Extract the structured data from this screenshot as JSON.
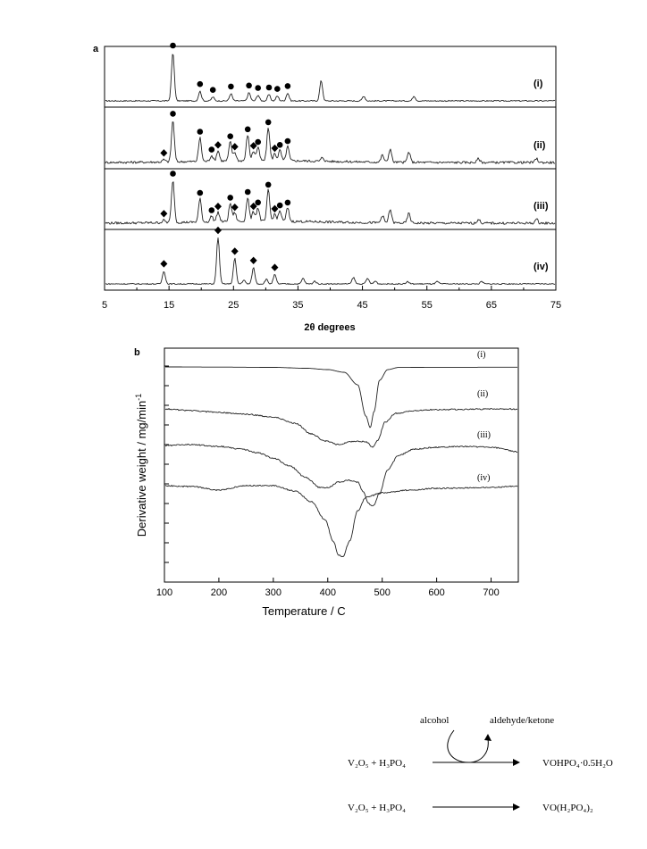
{
  "chart_data": [
    {
      "panel": "a",
      "type": "line",
      "xlabel": "2θ degrees",
      "xlim": [
        5,
        75
      ],
      "xticks": [
        5,
        15,
        25,
        35,
        45,
        55,
        65,
        75
      ],
      "marker_legend": {
        "circle": "●",
        "diamond": "◆"
      },
      "series": [
        {
          "name": "(i)",
          "peaks": [
            [
              15.6,
              1.0
            ],
            [
              19.8,
              0.2
            ],
            [
              21.8,
              0.08
            ],
            [
              24.6,
              0.15
            ],
            [
              27.4,
              0.17
            ],
            [
              28.8,
              0.12
            ],
            [
              30.5,
              0.13
            ],
            [
              31.8,
              0.1
            ],
            [
              33.4,
              0.16
            ],
            [
              38.6,
              0.42
            ],
            [
              45.2,
              0.1
            ],
            [
              53.0,
              0.1
            ]
          ],
          "circle_markers": [
            15.6,
            19.8,
            21.8,
            24.6,
            27.4,
            28.8,
            30.5,
            31.8,
            33.4
          ],
          "diamond_markers": []
        },
        {
          "name": "(ii)",
          "peaks": [
            [
              14.2,
              0.05
            ],
            [
              15.6,
              0.88
            ],
            [
              19.8,
              0.5
            ],
            [
              21.6,
              0.12
            ],
            [
              22.6,
              0.22
            ],
            [
              24.5,
              0.4
            ],
            [
              25.2,
              0.18
            ],
            [
              27.2,
              0.55
            ],
            [
              28.1,
              0.2
            ],
            [
              28.8,
              0.28
            ],
            [
              30.4,
              0.7
            ],
            [
              31.4,
              0.15
            ],
            [
              32.2,
              0.22
            ],
            [
              33.4,
              0.3
            ],
            [
              38.8,
              0.08
            ],
            [
              48.1,
              0.15
            ],
            [
              49.3,
              0.28
            ],
            [
              52.2,
              0.22
            ],
            [
              63.0,
              0.08
            ],
            [
              72.0,
              0.08
            ]
          ],
          "circle_markers": [
            15.6,
            19.8,
            21.6,
            24.5,
            27.2,
            28.8,
            30.4,
            32.2,
            33.4
          ],
          "diamond_markers": [
            14.2,
            22.6,
            25.2,
            28.1,
            31.4
          ]
        },
        {
          "name": "(iii)",
          "peaks": [
            [
              14.2,
              0.05
            ],
            [
              15.6,
              0.88
            ],
            [
              19.8,
              0.48
            ],
            [
              21.6,
              0.12
            ],
            [
              22.6,
              0.2
            ],
            [
              24.5,
              0.38
            ],
            [
              25.2,
              0.18
            ],
            [
              27.2,
              0.5
            ],
            [
              28.1,
              0.2
            ],
            [
              28.8,
              0.28
            ],
            [
              30.4,
              0.65
            ],
            [
              31.4,
              0.15
            ],
            [
              32.2,
              0.22
            ],
            [
              33.4,
              0.28
            ],
            [
              48.1,
              0.15
            ],
            [
              49.3,
              0.28
            ],
            [
              52.2,
              0.2
            ],
            [
              63.0,
              0.08
            ],
            [
              72.0,
              0.08
            ]
          ],
          "circle_markers": [
            15.6,
            19.8,
            21.6,
            24.5,
            27.2,
            28.8,
            30.4,
            32.2,
            33.4
          ],
          "diamond_markers": [
            14.2,
            22.6,
            25.2,
            28.1,
            31.4
          ]
        },
        {
          "name": "(iv)",
          "peaks": [
            [
              14.2,
              0.28
            ],
            [
              22.6,
              1.0
            ],
            [
              25.2,
              0.55
            ],
            [
              26.6,
              0.08
            ],
            [
              28.1,
              0.35
            ],
            [
              30.1,
              0.1
            ],
            [
              31.4,
              0.2
            ],
            [
              35.8,
              0.12
            ],
            [
              37.6,
              0.06
            ],
            [
              43.6,
              0.14
            ],
            [
              45.8,
              0.12
            ],
            [
              47.0,
              0.06
            ],
            [
              52.0,
              0.05
            ],
            [
              56.6,
              0.05
            ],
            [
              63.5,
              0.05
            ]
          ],
          "circle_markers": [],
          "diamond_markers": [
            14.2,
            22.6,
            25.2,
            28.1,
            31.4
          ]
        }
      ]
    },
    {
      "panel": "b",
      "type": "line",
      "xlabel": "Temperature / C",
      "ylabel": "Derivative weight / mg/min",
      "ylabel_sup": "-1",
      "xlim": [
        100,
        750
      ],
      "xticks": [
        100,
        200,
        300,
        400,
        500,
        600,
        700
      ],
      "series": [
        {
          "name": "(i)",
          "points": [
            [
              100,
              0
            ],
            [
              200,
              -0.2
            ],
            [
              300,
              -0.5
            ],
            [
              360,
              -1.5
            ],
            [
              400,
              -3
            ],
            [
              430,
              -6
            ],
            [
              455,
              -20
            ],
            [
              470,
              -55
            ],
            [
              478,
              -68
            ],
            [
              485,
              -50
            ],
            [
              495,
              -15
            ],
            [
              510,
              -3
            ],
            [
              530,
              -0.6
            ],
            [
              600,
              -0.4
            ],
            [
              750,
              -0.3
            ]
          ]
        },
        {
          "name": "(ii)",
          "points": [
            [
              100,
              0
            ],
            [
              150,
              -2
            ],
            [
              200,
              -4
            ],
            [
              250,
              -6
            ],
            [
              300,
              -9
            ],
            [
              340,
              -16
            ],
            [
              370,
              -28
            ],
            [
              395,
              -36
            ],
            [
              420,
              -40
            ],
            [
              440,
              -37
            ],
            [
              455,
              -36
            ],
            [
              470,
              -37
            ],
            [
              483,
              -43
            ],
            [
              492,
              -35
            ],
            [
              505,
              -15
            ],
            [
              525,
              -5
            ],
            [
              560,
              -2
            ],
            [
              600,
              -0.8
            ],
            [
              700,
              -0.2
            ],
            [
              750,
              -0.2
            ]
          ]
        },
        {
          "name": "(iii)",
          "points": [
            [
              100,
              -1
            ],
            [
              150,
              0
            ],
            [
              200,
              -2
            ],
            [
              240,
              -5
            ],
            [
              270,
              -9
            ],
            [
              300,
              -15
            ],
            [
              330,
              -24
            ],
            [
              360,
              -37
            ],
            [
              385,
              -48
            ],
            [
              400,
              -48
            ],
            [
              420,
              -42
            ],
            [
              440,
              -40
            ],
            [
              455,
              -42
            ],
            [
              465,
              -53
            ],
            [
              475,
              -66
            ],
            [
              483,
              -69
            ],
            [
              495,
              -55
            ],
            [
              510,
              -28
            ],
            [
              530,
              -12
            ],
            [
              560,
              -5
            ],
            [
              600,
              -3
            ],
            [
              650,
              -2
            ],
            [
              700,
              -3
            ],
            [
              750,
              -8
            ]
          ]
        },
        {
          "name": "(iv)",
          "points": [
            [
              100,
              0
            ],
            [
              150,
              -1
            ],
            [
              200,
              -5
            ],
            [
              250,
              0
            ],
            [
              300,
              0
            ],
            [
              340,
              -6
            ],
            [
              370,
              -18
            ],
            [
              395,
              -38
            ],
            [
              410,
              -62
            ],
            [
              420,
              -78
            ],
            [
              428,
              -80
            ],
            [
              440,
              -62
            ],
            [
              455,
              -28
            ],
            [
              470,
              -13
            ],
            [
              500,
              -8
            ],
            [
              550,
              -5
            ],
            [
              600,
              -3
            ],
            [
              700,
              -2
            ],
            [
              750,
              -0.5
            ]
          ]
        }
      ]
    }
  ],
  "reactions": {
    "above_left": "alcohol",
    "above_right": "aldehyde/ketone",
    "row1": {
      "left": "V₂O₅ + H₃PO₄",
      "product": "VOHPO₄·0.5H₂O"
    },
    "row2": {
      "left": "V₂O₅ + H₃PO₄",
      "product": "VO(H₂PO₄)₂"
    }
  }
}
